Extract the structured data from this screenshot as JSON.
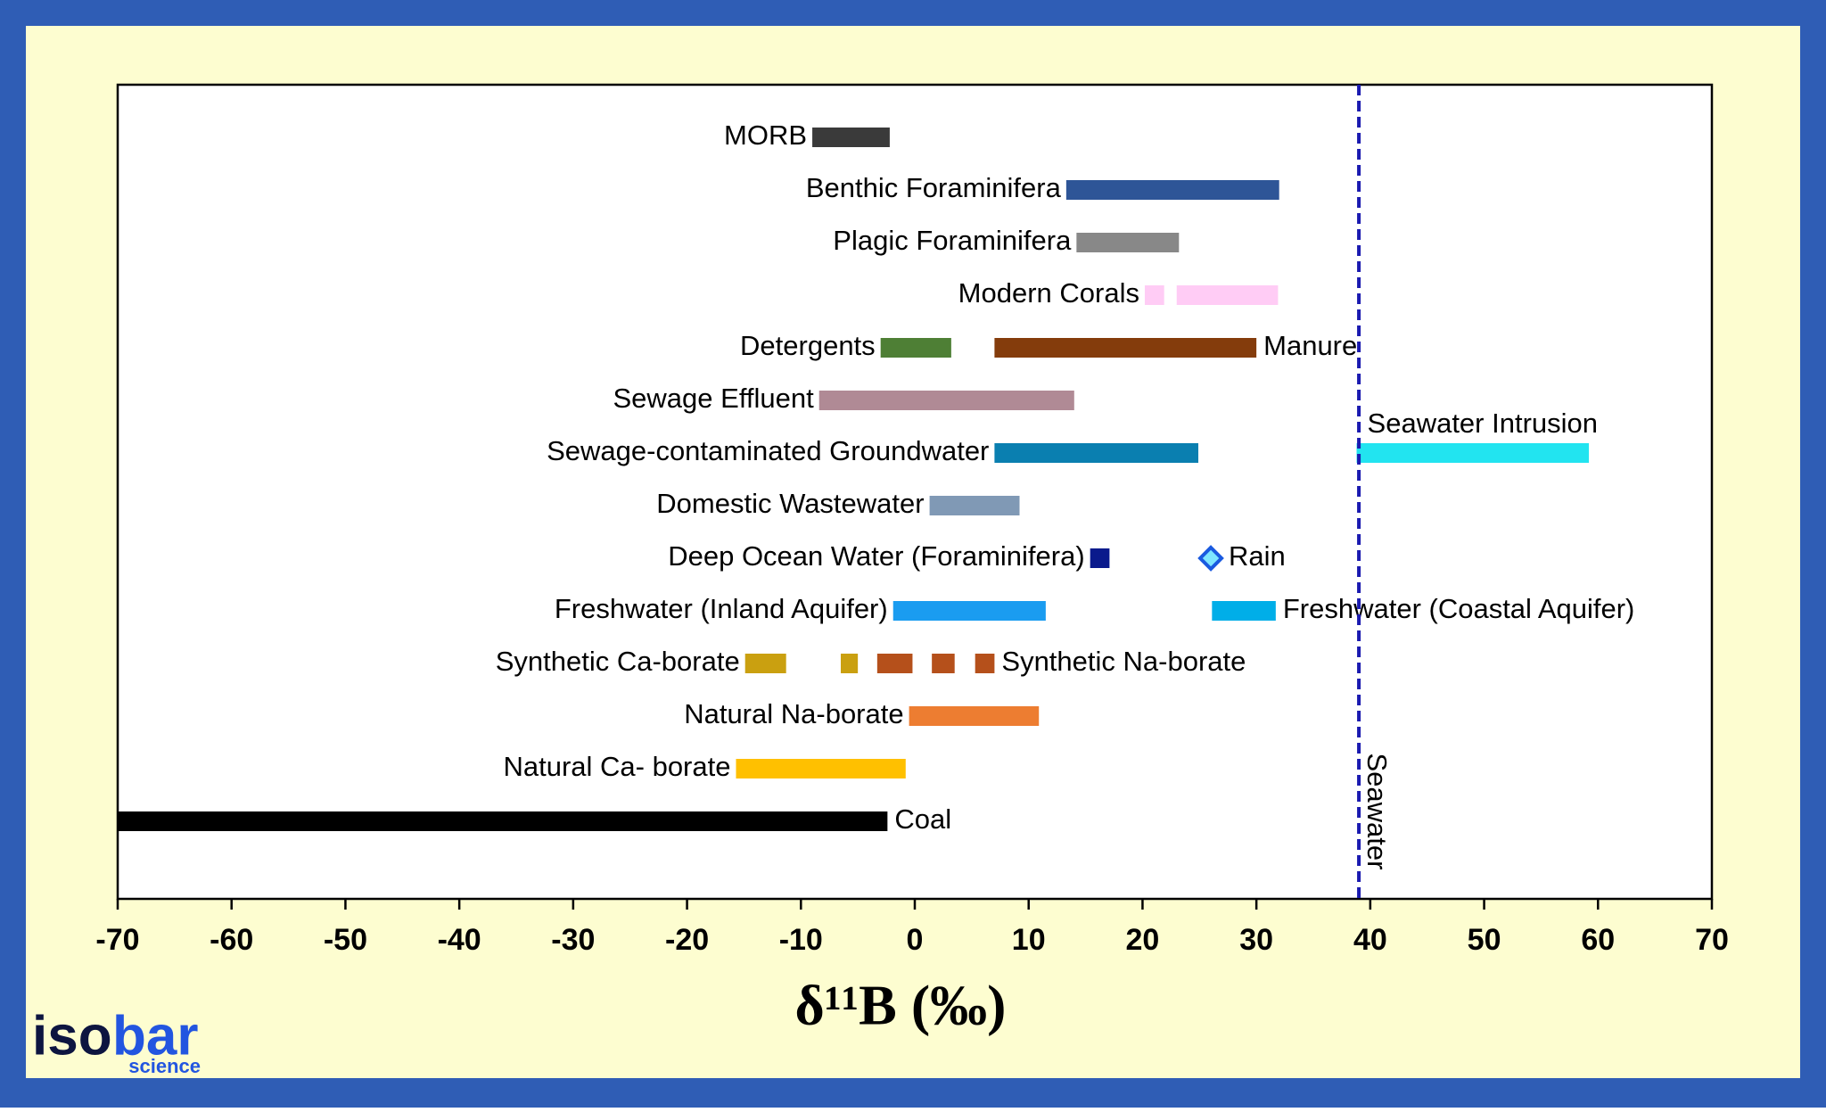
{
  "chart_data": {
    "type": "range",
    "xlabel": "δ¹¹B (‰)",
    "xlim": [
      -70,
      70
    ],
    "xticks": [
      -70,
      -60,
      -50,
      -40,
      -30,
      -20,
      -10,
      0,
      10,
      20,
      30,
      40,
      50,
      60,
      70
    ],
    "series": [
      {
        "name": "MORB",
        "color": "#3a3a3a",
        "values": [
          [
            -9,
            -2.2
          ]
        ]
      },
      {
        "name": "Benthic Foraminifera",
        "color": "#2e5597",
        "values": [
          [
            13.3,
            32
          ]
        ]
      },
      {
        "name": "Plagic Foraminifera",
        "color": "#888888",
        "values": [
          [
            14.2,
            23.2
          ]
        ]
      },
      {
        "name": "Modern Corals",
        "color": "#ffccf5",
        "values": [
          [
            20.2,
            21.9
          ],
          [
            23,
            31.9
          ]
        ]
      },
      {
        "name": "Detergents",
        "color": "#4e7f35",
        "values": [
          [
            -3,
            3.2
          ]
        ]
      },
      {
        "name": "Manure",
        "color": "#843c0c",
        "values": [
          [
            7,
            30
          ]
        ]
      },
      {
        "name": "Sewage Effluent",
        "color": "#b08a95",
        "values": [
          [
            -8.4,
            14
          ]
        ]
      },
      {
        "name": "Sewage-contaminated Groundwater",
        "color": "#0a7fb0",
        "values": [
          [
            7,
            24.9
          ]
        ]
      },
      {
        "name": "Seawater Intrusion",
        "color": "#22e4f0",
        "values": [
          [
            38.8,
            59.2
          ]
        ]
      },
      {
        "name": "Domestic Wastewater",
        "color": "#8099b5",
        "values": [
          [
            1.3,
            9.2
          ]
        ]
      },
      {
        "name": "Deep Ocean Water (Foraminifera)",
        "color": "#0a1a8c",
        "values": [
          [
            15.4,
            17.1
          ]
        ]
      },
      {
        "name": "Rain",
        "color": "#1a5ae0",
        "values": [
          26
        ]
      },
      {
        "name": "Freshwater (Inland Aquifer)",
        "color": "#1a9cf0",
        "values": [
          [
            -1.9,
            11.5
          ]
        ]
      },
      {
        "name": "Freshwater (Coastal Aquifer)",
        "color": "#00aee8",
        "values": [
          [
            26.1,
            31.7
          ]
        ]
      },
      {
        "name": "Synthetic Ca-borate",
        "color": "#caa010",
        "values": [
          [
            -14.9,
            -11.3
          ],
          [
            -6.5,
            -5
          ]
        ]
      },
      {
        "name": "Synthetic Na-borate",
        "color": "#b5501b",
        "values": [
          [
            -3.3,
            -0.2
          ],
          [
            1.5,
            3.5
          ],
          [
            5.3,
            7
          ]
        ]
      },
      {
        "name": "Natural Na-borate",
        "color": "#ed7d31",
        "values": [
          [
            -0.5,
            10.9
          ]
        ]
      },
      {
        "name": "Natural Ca- borate",
        "color": "#ffc000",
        "values": [
          [
            -15.7,
            -0.8
          ]
        ]
      },
      {
        "name": "Coal",
        "color": "#000000",
        "values": [
          [
            -70,
            -2.4
          ]
        ]
      }
    ],
    "reference_lines": [
      {
        "value": 39,
        "label": "Seawater",
        "color": "#1a1ab0"
      }
    ]
  },
  "logo": {
    "part1": "iso",
    "part2": "bar",
    "sub": "science"
  }
}
